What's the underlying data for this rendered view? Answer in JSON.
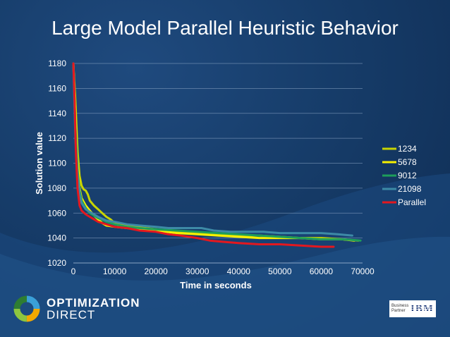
{
  "slide": {
    "title": "Large Model Parallel Heuristic Behavior",
    "logo_line1": "OPTIMIZATION",
    "logo_line2": "DIRECT",
    "partner_line1": "Business",
    "partner_line2": "Partner",
    "partner_brand": "IBM"
  },
  "chart_data": {
    "type": "line",
    "title": "Large Model Parallel Heuristic Behavior",
    "xlabel": "Time in seconds",
    "ylabel": "Solution value",
    "xlim": [
      0,
      70000
    ],
    "ylim": [
      1020,
      1180
    ],
    "xticks": [
      "0",
      "10000",
      "20000",
      "30000",
      "40000",
      "50000",
      "60000",
      "70000"
    ],
    "yticks": [
      "1020",
      "1040",
      "1060",
      "1080",
      "1100",
      "1120",
      "1140",
      "1160",
      "1180"
    ],
    "grid": "horizontal",
    "legend": "right",
    "series": [
      {
        "name": "1234",
        "color": "#c8d400",
        "points": [
          [
            0,
            1180
          ],
          [
            500,
            1150
          ],
          [
            1000,
            1110
          ],
          [
            1500,
            1090
          ],
          [
            2000,
            1082
          ],
          [
            2500,
            1079
          ],
          [
            3000,
            1078
          ],
          [
            3500,
            1075
          ],
          [
            4000,
            1070
          ],
          [
            5000,
            1066
          ],
          [
            6000,
            1063
          ],
          [
            7000,
            1060
          ],
          [
            8000,
            1057
          ],
          [
            9000,
            1055
          ],
          [
            10000,
            1052
          ],
          [
            12000,
            1050
          ],
          [
            15000,
            1049
          ],
          [
            20000,
            1047
          ],
          [
            25000,
            1045
          ],
          [
            30000,
            1044
          ],
          [
            35000,
            1043
          ],
          [
            40000,
            1042
          ],
          [
            45000,
            1042
          ],
          [
            50000,
            1041
          ],
          [
            55000,
            1040
          ],
          [
            60000,
            1040
          ],
          [
            65000,
            1039
          ],
          [
            69000,
            1038
          ]
        ]
      },
      {
        "name": "5678",
        "color": "#f7f000",
        "points": [
          [
            0,
            1180
          ],
          [
            500,
            1140
          ],
          [
            1000,
            1100
          ],
          [
            1500,
            1080
          ],
          [
            2000,
            1072
          ],
          [
            3000,
            1066
          ],
          [
            4000,
            1062
          ],
          [
            5000,
            1058
          ],
          [
            6000,
            1055
          ],
          [
            7000,
            1052
          ],
          [
            8000,
            1050
          ],
          [
            10000,
            1049
          ],
          [
            13000,
            1048
          ],
          [
            16000,
            1047
          ],
          [
            20000,
            1046
          ],
          [
            25000,
            1044
          ],
          [
            30000,
            1043
          ],
          [
            35000,
            1042
          ],
          [
            40000,
            1041
          ],
          [
            45000,
            1040
          ],
          [
            50000,
            1040
          ],
          [
            55000,
            1040
          ],
          [
            60000,
            1039
          ],
          [
            65000,
            1039
          ],
          [
            68000,
            1038
          ]
        ]
      },
      {
        "name": "9012",
        "color": "#1e9e5a",
        "points": [
          [
            0,
            1180
          ],
          [
            500,
            1130
          ],
          [
            1000,
            1095
          ],
          [
            1500,
            1078
          ],
          [
            2000,
            1070
          ],
          [
            3000,
            1064
          ],
          [
            4000,
            1060
          ],
          [
            5000,
            1058
          ],
          [
            6000,
            1056
          ],
          [
            8000,
            1053
          ],
          [
            10000,
            1051
          ],
          [
            13000,
            1049
          ],
          [
            16000,
            1048
          ],
          [
            20000,
            1047
          ],
          [
            25000,
            1046
          ],
          [
            30000,
            1045
          ],
          [
            35000,
            1044
          ],
          [
            40000,
            1043
          ],
          [
            45000,
            1042
          ],
          [
            50000,
            1041
          ],
          [
            55000,
            1040
          ],
          [
            60000,
            1039
          ],
          [
            65000,
            1039
          ],
          [
            69500,
            1038
          ]
        ]
      },
      {
        "name": "21098",
        "color": "#3d8aa6",
        "points": [
          [
            0,
            1180
          ],
          [
            500,
            1120
          ],
          [
            1000,
            1090
          ],
          [
            1500,
            1075
          ],
          [
            2000,
            1068
          ],
          [
            3000,
            1063
          ],
          [
            4000,
            1061
          ],
          [
            5000,
            1059
          ],
          [
            6000,
            1057
          ],
          [
            8000,
            1054
          ],
          [
            10000,
            1053
          ],
          [
            13000,
            1051
          ],
          [
            16000,
            1050
          ],
          [
            20000,
            1049
          ],
          [
            23000,
            1048
          ],
          [
            27000,
            1048
          ],
          [
            31000,
            1048
          ],
          [
            34000,
            1046
          ],
          [
            38000,
            1045
          ],
          [
            42000,
            1045
          ],
          [
            46000,
            1045
          ],
          [
            50000,
            1044
          ],
          [
            56000,
            1044
          ],
          [
            60000,
            1044
          ],
          [
            64000,
            1043
          ],
          [
            67500,
            1042
          ]
        ]
      },
      {
        "name": "Parallel",
        "color": "#e3181f",
        "points": [
          [
            0,
            1180
          ],
          [
            300,
            1150
          ],
          [
            600,
            1110
          ],
          [
            1000,
            1080
          ],
          [
            1500,
            1066
          ],
          [
            2000,
            1062
          ],
          [
            3000,
            1059
          ],
          [
            4000,
            1057
          ],
          [
            5000,
            1055
          ],
          [
            6000,
            1053
          ],
          [
            8000,
            1051
          ],
          [
            10000,
            1049
          ],
          [
            13000,
            1048
          ],
          [
            16000,
            1046
          ],
          [
            20000,
            1045
          ],
          [
            23000,
            1043
          ],
          [
            26000,
            1042
          ],
          [
            30000,
            1040
          ],
          [
            33000,
            1038
          ],
          [
            36000,
            1037
          ],
          [
            40000,
            1036
          ],
          [
            45000,
            1035
          ],
          [
            50000,
            1035
          ],
          [
            55000,
            1034
          ],
          [
            60000,
            1033
          ],
          [
            63000,
            1033
          ]
        ]
      }
    ]
  }
}
